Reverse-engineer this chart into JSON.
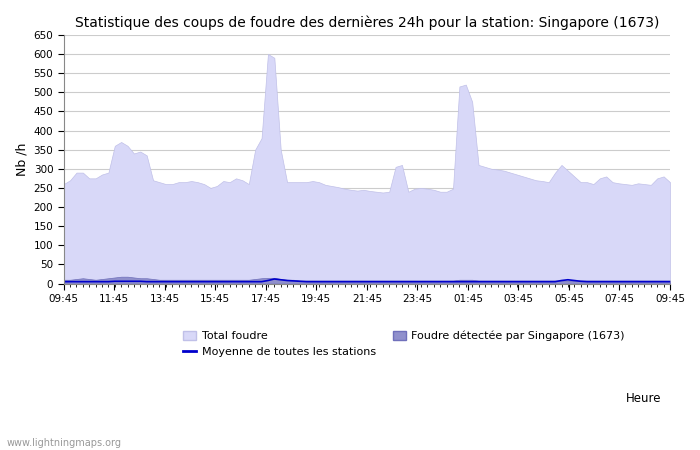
{
  "title": "Statistique des coups de foudre des dernières 24h pour la station: Singapore (1673)",
  "xlabel": "Heure",
  "ylabel": "Nb /h",
  "ylim": [
    0,
    650
  ],
  "yticks": [
    0,
    50,
    100,
    150,
    200,
    250,
    300,
    350,
    400,
    450,
    500,
    550,
    600,
    650
  ],
  "x_labels": [
    "09:45",
    "11:45",
    "13:45",
    "15:45",
    "17:45",
    "19:45",
    "21:45",
    "23:45",
    "01:45",
    "03:45",
    "05:45",
    "07:45",
    "09:45"
  ],
  "background_color": "#ffffff",
  "plot_background": "#ffffff",
  "grid_color": "#cccccc",
  "total_foudre_color": "#d8d8f8",
  "total_foudre_edge": "#c0c0e8",
  "station_foudre_color": "#9090cc",
  "station_foudre_edge": "#7070bb",
  "moyenne_color": "#0000cc",
  "watermark": "www.lightningmaps.org",
  "legend_total": "Total foudre",
  "legend_moyenne": "Moyenne de toutes les stations",
  "legend_station": "Foudre détectée par Singapore (1673)",
  "total_foudre_data": [
    260,
    270,
    290,
    290,
    275,
    275,
    285,
    290,
    360,
    370,
    360,
    340,
    345,
    335,
    270,
    265,
    260,
    260,
    265,
    265,
    268,
    265,
    260,
    250,
    255,
    268,
    265,
    275,
    270,
    260,
    350,
    380,
    600,
    590,
    350,
    265,
    265,
    265,
    265,
    268,
    265,
    258,
    255,
    252,
    248,
    245,
    243,
    245,
    242,
    240,
    238,
    240,
    305,
    310,
    240,
    248,
    250,
    248,
    245,
    240,
    240,
    248,
    515,
    520,
    475,
    310,
    305,
    300,
    298,
    295,
    290,
    285,
    280,
    275,
    270,
    268,
    265,
    290,
    310,
    295,
    280,
    265,
    265,
    260,
    275,
    280,
    265,
    262,
    260,
    258,
    262,
    260,
    258,
    275,
    280,
    265
  ],
  "station_foudre_data": [
    10,
    10,
    12,
    14,
    12,
    10,
    12,
    14,
    16,
    18,
    18,
    16,
    14,
    14,
    12,
    10,
    10,
    10,
    10,
    10,
    10,
    10,
    10,
    10,
    10,
    10,
    10,
    10,
    10,
    10,
    12,
    14,
    15,
    15,
    12,
    10,
    10,
    8,
    8,
    8,
    8,
    8,
    8,
    8,
    8,
    8,
    8,
    8,
    8,
    8,
    8,
    8,
    8,
    8,
    8,
    8,
    8,
    8,
    8,
    8,
    8,
    8,
    10,
    10,
    10,
    8,
    8,
    8,
    8,
    8,
    8,
    8,
    8,
    8,
    8,
    8,
    8,
    8,
    8,
    8,
    8,
    8,
    8,
    8,
    8,
    8,
    8,
    8,
    8,
    8,
    8,
    8,
    8,
    8,
    8,
    8
  ],
  "moyenne_data": [
    5,
    5,
    5,
    5,
    5,
    5,
    5,
    5,
    6,
    6,
    6,
    6,
    6,
    5,
    5,
    5,
    5,
    5,
    5,
    5,
    5,
    5,
    5,
    5,
    5,
    5,
    5,
    5,
    5,
    5,
    5,
    5,
    8,
    12,
    10,
    8,
    7,
    6,
    5,
    5,
    5,
    5,
    5,
    5,
    5,
    5,
    5,
    5,
    5,
    5,
    5,
    5,
    5,
    5,
    5,
    5,
    5,
    5,
    5,
    5,
    5,
    5,
    5,
    5,
    5,
    5,
    5,
    5,
    5,
    5,
    5,
    5,
    5,
    5,
    5,
    5,
    5,
    5,
    8,
    10,
    8,
    6,
    5,
    5,
    5,
    5,
    5,
    5,
    5,
    5,
    5,
    5,
    5,
    5,
    5,
    5
  ]
}
